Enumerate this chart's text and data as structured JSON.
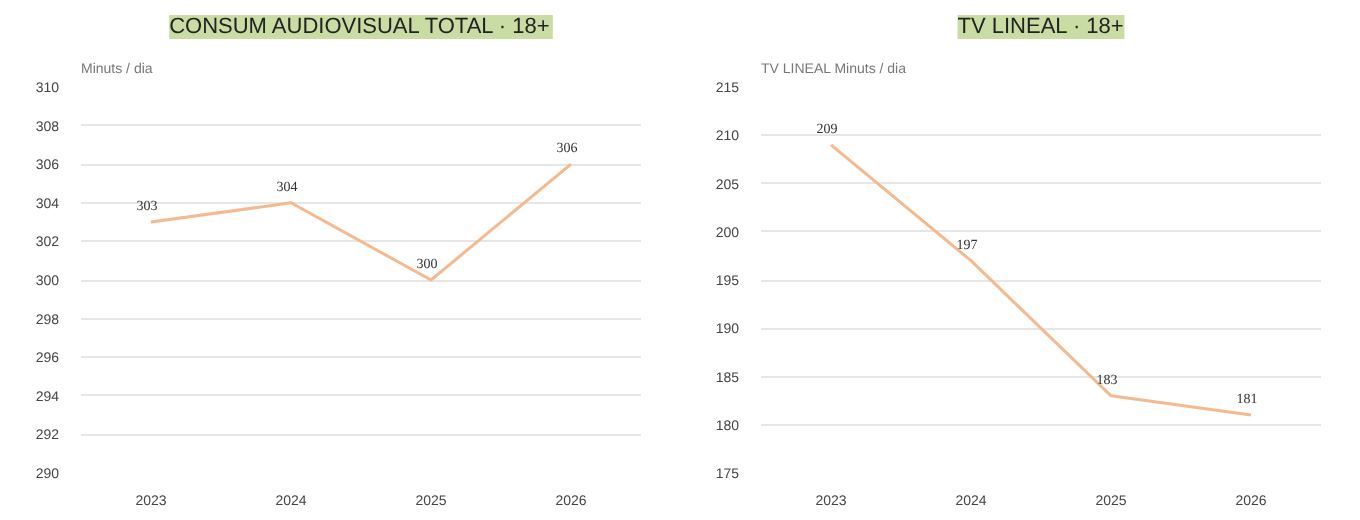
{
  "chart_data": [
    {
      "type": "line",
      "title": "CONSUM AUDIOVISUAL TOTAL · 18+",
      "ylabel": "Minuts / dia",
      "categories": [
        "2023",
        "2024",
        "2025",
        "2026"
      ],
      "series": [
        {
          "color": "#f4b98f",
          "values": [
            303,
            304,
            300,
            306
          ]
        }
      ],
      "ylim": [
        290,
        310
      ],
      "yticks": [
        290,
        292,
        294,
        296,
        298,
        300,
        302,
        304,
        306,
        308,
        310
      ],
      "grid": "y",
      "data_labels": true
    },
    {
      "type": "line",
      "title": "TV LINEAL · 18+",
      "ylabel": "TV LINEAL Minuts / dia",
      "categories": [
        "2023",
        "2024",
        "2025",
        "2026"
      ],
      "series": [
        {
          "color": "#f4b98f",
          "values": [
            209,
            197,
            183,
            181
          ]
        }
      ],
      "ylim": [
        175,
        215
      ],
      "yticks": [
        175,
        180,
        185,
        190,
        195,
        200,
        205,
        210,
        215
      ],
      "grid": "y",
      "data_labels": true
    }
  ]
}
